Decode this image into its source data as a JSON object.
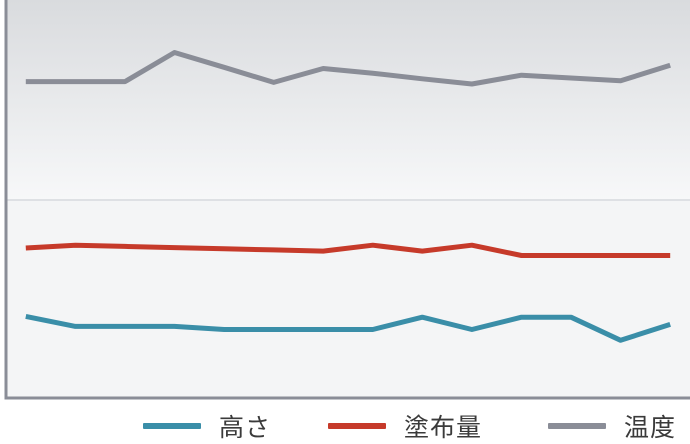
{
  "chart_data": {
    "type": "line",
    "title": "",
    "xlabel": "",
    "ylabel": "",
    "x": [
      1,
      2,
      3,
      4,
      5,
      6,
      7,
      8,
      9,
      10,
      11,
      12,
      13,
      14
    ],
    "xlim": [
      0.6,
      14.4
    ],
    "ylim": [
      0,
      100
    ],
    "grid": true,
    "legend_position": "bottom",
    "series": [
      {
        "name": "高さ",
        "color": "#3a8ea8",
        "values": [
          20.5,
          18.0,
          18.0,
          18.0,
          17.2,
          17.2,
          17.2,
          17.2,
          20.3,
          17.2,
          20.3,
          20.3,
          14.5,
          18.5
        ]
      },
      {
        "name": "塗布量",
        "color": "#c63a2a",
        "values": [
          37.7,
          38.4,
          38.1,
          37.8,
          37.5,
          37.2,
          36.9,
          38.4,
          36.9,
          38.4,
          35.8,
          35.8,
          35.8,
          35.8
        ]
      },
      {
        "name": "温度",
        "color": "#8a8d97",
        "values": [
          79.5,
          79.5,
          79.5,
          86.8,
          83.1,
          79.3,
          82.8,
          81.6,
          80.2,
          78.9,
          81.1,
          80.4,
          79.7,
          83.6
        ]
      }
    ]
  }
}
